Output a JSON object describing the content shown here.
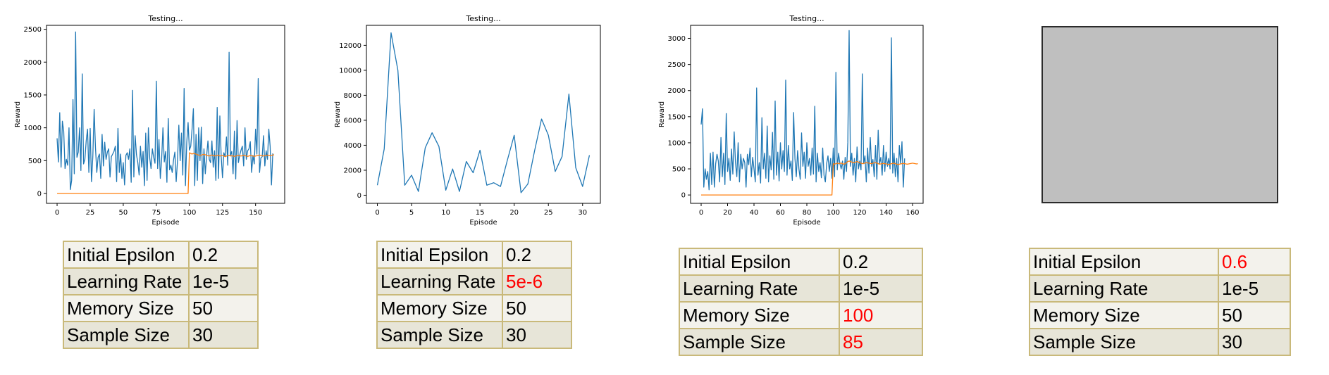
{
  "chart_data": [
    {
      "type": "line",
      "title": "Testing...",
      "xlabel": "Episode",
      "ylabel": "Reward",
      "xlim": [
        -8,
        172
      ],
      "ylim": [
        -150,
        2560
      ],
      "xticks": [
        0,
        25,
        50,
        75,
        100,
        125,
        150
      ],
      "yticks": [
        0,
        500,
        1000,
        1500,
        2000,
        2500
      ],
      "series": [
        {
          "color": "#1f77b4",
          "values": [
            840,
            480,
            1230,
            400,
            1100,
            950,
            380,
            520,
            430,
            1000,
            60,
            200,
            1430,
            300,
            2460,
            550,
            630,
            1000,
            350,
            1820,
            450,
            520,
            800,
            980,
            320,
            990,
            180,
            560,
            1280,
            700,
            320,
            550,
            600,
            230,
            900,
            420,
            780,
            520,
            630,
            680,
            250,
            560,
            600,
            640,
            720,
            180,
            990,
            320,
            600,
            230,
            470,
            130,
            580,
            620,
            520,
            680,
            170,
            1570,
            250,
            880,
            590,
            470,
            280,
            720,
            400,
            640,
            120,
            920,
            200,
            1000,
            540,
            380,
            680,
            550,
            460,
            1710,
            380,
            820,
            230,
            520,
            1000,
            480,
            640,
            170,
            1140,
            360,
            430,
            320,
            510,
            630,
            180,
            500,
            1040,
            500,
            920,
            280,
            1600,
            120,
            780,
            1080,
            660,
            720,
            980,
            1290,
            120,
            900,
            200,
            1000,
            500,
            1010,
            150,
            680,
            300,
            570,
            800,
            520,
            470,
            800,
            400,
            650,
            200,
            1310,
            230,
            1180,
            570,
            240,
            620,
            560,
            860,
            430,
            2150,
            580,
            640,
            300,
            950,
            220,
            1110,
            470,
            580,
            660,
            720,
            420,
            1000,
            520,
            650,
            680,
            790,
            320,
            580,
            450,
            980,
            600,
            1750,
            320,
            540,
            560,
            880,
            420,
            650,
            520,
            980,
            720,
            130,
            610
          ],
          "xstart": 0
        },
        {
          "color": "#ff7f0e",
          "values": [
            0,
            0,
            0,
            0,
            0,
            0,
            0,
            0,
            0,
            0,
            0,
            0,
            0,
            0,
            0,
            0,
            0,
            0,
            0,
            0,
            0,
            0,
            0,
            0,
            0,
            0,
            0,
            0,
            0,
            0,
            0,
            0,
            0,
            0,
            0,
            0,
            0,
            0,
            0,
            0,
            0,
            0,
            0,
            0,
            0,
            0,
            0,
            0,
            0,
            0,
            0,
            0,
            0,
            0,
            0,
            0,
            0,
            0,
            0,
            0,
            0,
            0,
            0,
            0,
            0,
            0,
            0,
            0,
            0,
            0,
            0,
            0,
            0,
            0,
            0,
            0,
            0,
            0,
            0,
            0,
            0,
            0,
            0,
            0,
            0,
            0,
            0,
            0,
            0,
            0,
            0,
            0,
            0,
            0,
            0,
            0,
            0,
            0,
            0,
            0,
            620,
            610,
            600,
            610,
            605,
            600,
            590,
            585,
            580,
            585,
            590,
            595,
            590,
            580,
            575,
            570,
            580,
            585,
            580,
            570,
            575,
            580,
            585,
            570,
            575,
            580,
            570,
            560,
            570,
            575,
            580,
            570,
            575,
            570,
            565,
            570,
            575,
            580,
            575,
            570,
            575,
            580,
            575,
            570,
            565,
            570,
            580,
            575,
            570,
            565,
            570,
            575,
            580,
            585,
            580,
            575,
            570,
            575,
            580,
            585,
            580,
            575,
            580,
            585,
            590
          ],
          "xstart": 0
        }
      ]
    },
    {
      "type": "line",
      "title": "Testing...",
      "xlabel": "Episode",
      "ylabel": "Reward",
      "xlim": [
        -1.6,
        32.6
      ],
      "ylim": [
        -650,
        13600
      ],
      "xticks": [
        0,
        5,
        10,
        15,
        20,
        25,
        30
      ],
      "yticks": [
        0,
        2000,
        4000,
        6000,
        8000,
        10000,
        12000
      ],
      "series": [
        {
          "color": "#1f77b4",
          "values": [
            800,
            3700,
            13000,
            10000,
            800,
            1600,
            300,
            3800,
            5000,
            3900,
            400,
            2100,
            300,
            2700,
            1800,
            3600,
            800,
            1000,
            700,
            2800,
            4800,
            200,
            900,
            3600,
            6100,
            4800,
            1900,
            3100,
            8100,
            2200,
            700,
            3200
          ],
          "xstart": 0
        }
      ]
    },
    {
      "type": "line",
      "title": "Testing...",
      "xlabel": "Episode",
      "ylabel": "Reward",
      "xlim": [
        -8,
        168
      ],
      "ylim": [
        -160,
        3250
      ],
      "xticks": [
        0,
        20,
        40,
        60,
        80,
        100,
        120,
        140,
        160
      ],
      "yticks": [
        0,
        500,
        1000,
        1500,
        2000,
        2500,
        3000
      ],
      "series": [
        {
          "color": "#1f77b4",
          "values": [
            1350,
            1650,
            150,
            500,
            300,
            450,
            100,
            800,
            200,
            820,
            150,
            600,
            780,
            650,
            250,
            1100,
            350,
            800,
            200,
            1560,
            450,
            700,
            280,
            880,
            400,
            1210,
            620,
            350,
            1000,
            250,
            780,
            500,
            700,
            620,
            150,
            780,
            580,
            900,
            350,
            720,
            500,
            250,
            2050,
            380,
            620,
            230,
            1480,
            500,
            800,
            320,
            1320,
            250,
            750,
            480,
            1200,
            300,
            1800,
            380,
            820,
            270,
            1000,
            500,
            850,
            450,
            2200,
            380,
            950,
            500,
            650,
            280,
            1580,
            700,
            350,
            850,
            500,
            300,
            1190,
            550,
            820,
            320,
            1000,
            550,
            700,
            380,
            900,
            400,
            1700,
            250,
            800,
            450,
            620,
            330,
            900,
            380,
            250,
            600,
            750,
            450,
            700,
            320,
            900,
            350,
            2350,
            480,
            800,
            600,
            500,
            650,
            300,
            720,
            450,
            1000,
            3150,
            550,
            800,
            380,
            700,
            250,
            920,
            500,
            650,
            480,
            2320,
            600,
            750,
            250,
            900,
            420,
            1100,
            550,
            680,
            350,
            950,
            300,
            1240,
            600,
            720,
            380,
            950,
            450,
            820,
            550,
            700,
            500,
            3010,
            420,
            800,
            350,
            700,
            250,
            950,
            600,
            1020,
            150,
            700
          ],
          "xstart": 0
        },
        {
          "color": "#ff7f0e",
          "values": [
            0,
            0,
            0,
            0,
            0,
            0,
            0,
            0,
            0,
            0,
            0,
            0,
            0,
            0,
            0,
            0,
            0,
            0,
            0,
            0,
            0,
            0,
            0,
            0,
            0,
            0,
            0,
            0,
            0,
            0,
            0,
            0,
            0,
            0,
            0,
            0,
            0,
            0,
            0,
            0,
            0,
            0,
            0,
            0,
            0,
            0,
            0,
            0,
            0,
            0,
            0,
            0,
            0,
            0,
            0,
            0,
            0,
            0,
            0,
            0,
            0,
            0,
            0,
            0,
            0,
            0,
            0,
            0,
            0,
            0,
            0,
            0,
            0,
            0,
            0,
            0,
            0,
            0,
            0,
            0,
            0,
            0,
            0,
            0,
            0,
            0,
            0,
            0,
            0,
            0,
            0,
            0,
            0,
            0,
            0,
            0,
            0,
            0,
            0,
            0,
            600,
            590,
            600,
            610,
            600,
            605,
            610,
            600,
            590,
            600,
            620,
            640,
            650,
            640,
            630,
            620,
            625,
            630,
            640,
            630,
            620,
            610,
            600,
            605,
            610,
            620,
            615,
            610,
            605,
            600,
            610,
            615,
            620,
            610,
            600,
            590,
            595,
            600,
            605,
            600,
            595,
            590,
            585,
            590,
            600,
            605,
            610,
            600,
            590,
            585,
            590,
            595,
            600,
            605,
            600,
            595,
            590,
            595,
            600,
            605,
            610,
            605,
            600,
            595,
            600
          ],
          "xstart": 0
        }
      ]
    }
  ],
  "tables": [
    {
      "rows": [
        {
          "label": "Initial Epsilon",
          "value": "0.2",
          "highlight": false
        },
        {
          "label": "Learning Rate",
          "value": "1e-5",
          "highlight": false
        },
        {
          "label": "Memory Size",
          "value": "50",
          "highlight": false
        },
        {
          "label": "Sample Size",
          "value": "30",
          "highlight": false
        }
      ]
    },
    {
      "rows": [
        {
          "label": "Initial Epsilon",
          "value": "0.2",
          "highlight": false
        },
        {
          "label": "Learning Rate",
          "value": "5e-6",
          "highlight": true
        },
        {
          "label": "Memory Size",
          "value": "50",
          "highlight": false
        },
        {
          "label": "Sample Size",
          "value": "30",
          "highlight": false
        }
      ]
    },
    {
      "rows": [
        {
          "label": "Initial Epsilon",
          "value": "0.2",
          "highlight": false
        },
        {
          "label": "Learning Rate",
          "value": "1e-5",
          "highlight": false
        },
        {
          "label": "Memory Size",
          "value": "100",
          "highlight": true
        },
        {
          "label": "Sample Size",
          "value": "85",
          "highlight": true
        }
      ]
    },
    {
      "rows": [
        {
          "label": "Initial Epsilon",
          "value": "0.6",
          "highlight": true
        },
        {
          "label": "Learning Rate",
          "value": "1e-5",
          "highlight": false
        },
        {
          "label": "Memory Size",
          "value": "50",
          "highlight": false
        },
        {
          "label": "Sample Size",
          "value": "30",
          "highlight": false
        }
      ]
    }
  ],
  "colors": {
    "table_border": "#c9b97a",
    "highlight_text": "#ff0000",
    "placeholder_fill": "#bfbfbf"
  }
}
